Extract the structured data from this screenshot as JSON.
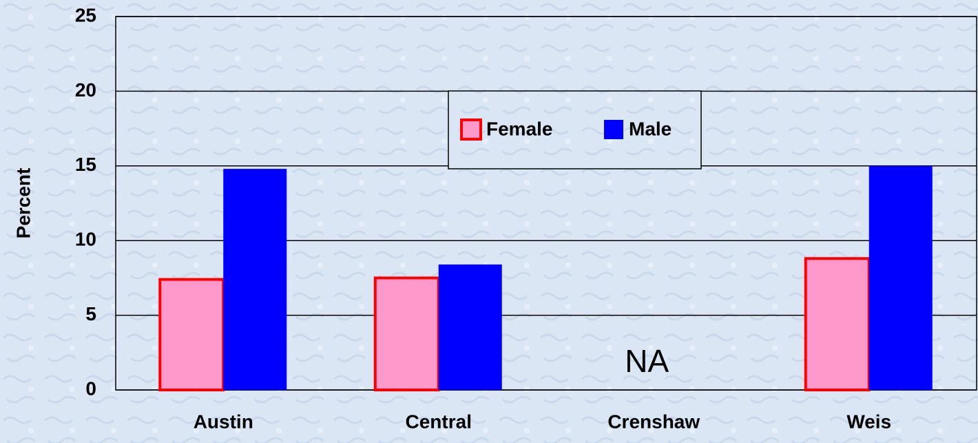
{
  "chart_data": {
    "type": "bar",
    "y_label": "Percent",
    "categories": [
      "Austin",
      "Central",
      "Crenshaw",
      "Weis"
    ],
    "series": [
      {
        "name": "Female",
        "color": "#ff99cc",
        "edge_color": "#ff0000",
        "values": [
          7.4,
          7.5,
          null,
          8.8
        ]
      },
      {
        "name": "Male",
        "color": "#0000ff",
        "values": [
          14.8,
          8.4,
          null,
          15.0
        ]
      }
    ],
    "annotations": [
      {
        "category": "Crenshaw",
        "text": "NA"
      }
    ],
    "ylim": [
      0,
      25
    ],
    "yticks": [
      0,
      5,
      10,
      15,
      20,
      25
    ],
    "grid": true,
    "legend": "top-center"
  }
}
